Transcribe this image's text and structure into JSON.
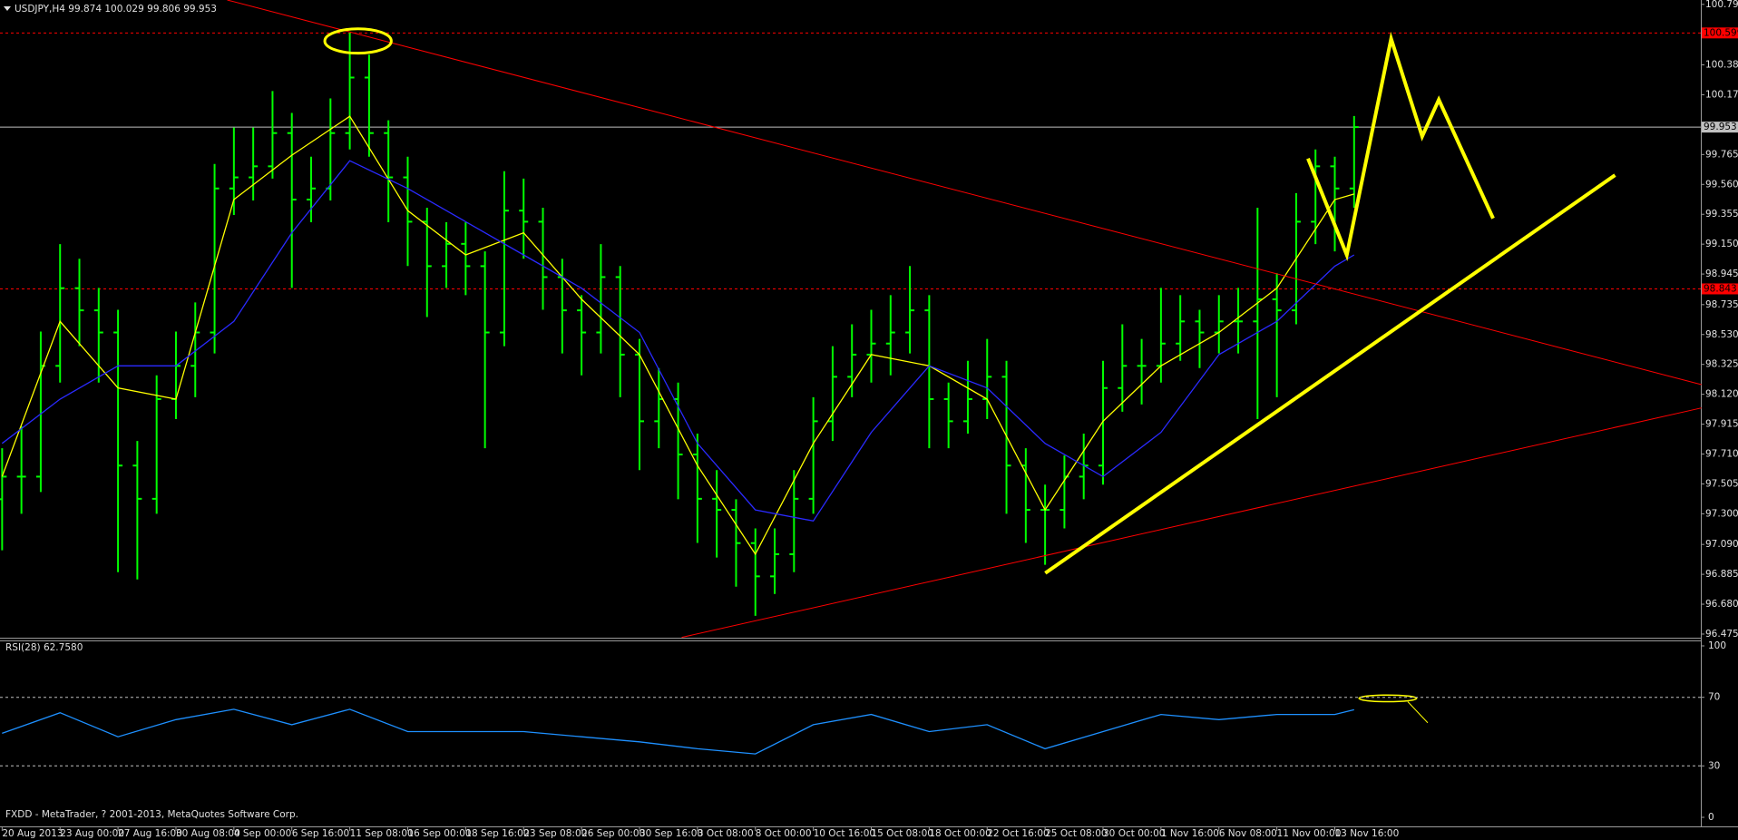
{
  "header": "USDJPY,H4  99.874 100.029 99.806 99.953",
  "footer": "FXDD - MetaTrader, ? 2001-2013, MetaQuotes Software Corp.",
  "chart_data": [
    {
      "type": "ohlc",
      "color": "#00ff00",
      "open": [
        97.4,
        97.555,
        97.555,
        98.315,
        98.848,
        98.696,
        98.544,
        97.631,
        97.403,
        98.087,
        98.315,
        98.544,
        99.532,
        99.608,
        99.684,
        99.912,
        99.456,
        99.532,
        99.912,
        100.293,
        99.912,
        99.608,
        99.304,
        98.999,
        99.152,
        98.999,
        98.544,
        99.38,
        99.304,
        98.924,
        98.696,
        98.544,
        98.924,
        98.392,
        97.935,
        98.087,
        97.707,
        97.403,
        97.327,
        97.099,
        96.871,
        97.023,
        97.403,
        97.935,
        98.24,
        98.392,
        98.468,
        98.544,
        98.696,
        98.087,
        97.935,
        98.087,
        98.24,
        97.631,
        97.327,
        97.327,
        97.555,
        97.631,
        98.163,
        98.315,
        98.315,
        98.468,
        98.62,
        98.544,
        98.62,
        98.62,
        98.772,
        98.696,
        99.304,
        99.684,
        99.532
      ],
      "high": [
        97.75,
        97.9,
        98.55,
        99.15,
        99.05,
        98.85,
        98.7,
        97.8,
        98.25,
        98.55,
        98.75,
        99.7,
        99.95,
        99.95,
        100.2,
        100.05,
        99.75,
        100.15,
        100.6,
        100.45,
        100.0,
        99.75,
        99.4,
        99.3,
        99.3,
        99.1,
        99.65,
        99.6,
        99.4,
        99.05,
        98.8,
        99.15,
        99.0,
        98.5,
        98.3,
        98.2,
        97.85,
        97.6,
        97.4,
        97.2,
        97.2,
        97.6,
        98.1,
        98.45,
        98.6,
        98.7,
        98.8,
        99.0,
        98.8,
        98.2,
        98.35,
        98.5,
        98.35,
        97.75,
        97.5,
        97.7,
        97.85,
        98.35,
        98.6,
        98.5,
        98.85,
        98.8,
        98.7,
        98.8,
        98.85,
        99.4,
        98.95,
        99.5,
        99.8,
        99.75,
        100.029
      ],
      "low": [
        97.05,
        97.3,
        97.45,
        98.2,
        98.45,
        98.2,
        96.9,
        96.85,
        97.3,
        97.95,
        98.1,
        98.4,
        99.35,
        99.45,
        99.6,
        98.85,
        99.3,
        99.45,
        99.8,
        99.75,
        99.3,
        99.0,
        98.65,
        98.85,
        98.8,
        97.75,
        98.45,
        99.05,
        98.7,
        98.4,
        98.25,
        98.4,
        98.1,
        97.6,
        97.75,
        97.4,
        97.1,
        97.0,
        96.8,
        96.6,
        96.75,
        96.9,
        97.3,
        97.8,
        98.1,
        98.2,
        98.25,
        98.4,
        97.75,
        97.75,
        97.85,
        97.95,
        97.3,
        97.1,
        96.95,
        97.2,
        97.4,
        97.5,
        98.0,
        98.05,
        98.2,
        98.35,
        98.3,
        98.4,
        98.4,
        97.95,
        98.1,
        98.6,
        99.15,
        99.1,
        99.4
      ],
      "close": [
        97.555,
        97.555,
        98.315,
        98.848,
        98.696,
        98.544,
        97.631,
        97.403,
        98.087,
        98.315,
        98.544,
        99.532,
        99.608,
        99.684,
        99.912,
        99.456,
        99.532,
        99.912,
        100.293,
        99.912,
        99.608,
        99.304,
        98.999,
        99.152,
        98.999,
        98.544,
        99.38,
        99.304,
        98.924,
        98.696,
        98.544,
        98.924,
        98.392,
        97.935,
        98.087,
        97.707,
        97.403,
        97.327,
        97.099,
        96.871,
        97.023,
        97.403,
        97.935,
        98.24,
        98.392,
        98.468,
        98.544,
        98.696,
        98.087,
        97.935,
        98.087,
        98.24,
        97.631,
        97.327,
        97.327,
        97.555,
        97.631,
        98.163,
        98.315,
        98.315,
        98.468,
        98.62,
        98.544,
        98.62,
        98.62,
        98.772,
        98.696,
        99.304,
        99.684,
        99.532,
        99.953
      ],
      "overlays": [
        {
          "color": "#ffff00",
          "x": [
            0,
            3,
            6,
            9,
            12,
            15,
            18,
            21,
            24,
            27,
            30,
            33,
            36,
            39,
            42,
            45,
            48,
            51,
            54,
            57,
            60,
            63,
            66,
            69,
            70
          ],
          "values": [
            97.555,
            98.62,
            98.163,
            98.087,
            99.456,
            99.76,
            100.027,
            99.38,
            99.076,
            99.228,
            98.772,
            98.392,
            97.631,
            97.023,
            97.783,
            98.392,
            98.315,
            98.087,
            97.327,
            97.935,
            98.315,
            98.544,
            98.848,
            99.456,
            99.494
          ]
        },
        {
          "color": "#2a2aff",
          "x": [
            0,
            3,
            6,
            9,
            12,
            15,
            18,
            21,
            24,
            27,
            30,
            33,
            36,
            39,
            42,
            45,
            48,
            51,
            54,
            57,
            60,
            63,
            66,
            69,
            70
          ],
          "values": [
            97.783,
            98.087,
            98.315,
            98.315,
            98.62,
            99.228,
            99.722,
            99.532,
            99.304,
            99.076,
            98.848,
            98.544,
            97.783,
            97.327,
            97.251,
            97.859,
            98.315,
            98.163,
            97.783,
            97.555,
            97.859,
            98.392,
            98.62,
            98.999,
            99.076
          ]
        }
      ],
      "hlines": [
        {
          "value": 100.599,
          "color": "#ff0000",
          "style": "dashed"
        },
        {
          "value": 99.953,
          "color": "#c0c0c0",
          "style": "solid"
        },
        {
          "value": 98.843,
          "color": "#ff0000",
          "style": "dashed"
        }
      ],
      "xlim": [
        -0.11,
        87.95
      ],
      "xticks": [
        {
          "value": 0,
          "label": "20 Aug 2013"
        },
        {
          "value": 3,
          "label": "23 Aug 00:00"
        },
        {
          "value": 6,
          "label": "27 Aug 16:00"
        },
        {
          "value": 9,
          "label": "30 Aug 08:00"
        },
        {
          "value": 12,
          "label": "4 Sep 00:00"
        },
        {
          "value": 15,
          "label": "6 Sep 16:00"
        },
        {
          "value": 18,
          "label": "11 Sep 08:00"
        },
        {
          "value": 21,
          "label": "16 Sep 00:00"
        },
        {
          "value": 24,
          "label": "18 Sep 16:00"
        },
        {
          "value": 27,
          "label": "23 Sep 08:00"
        },
        {
          "value": 30,
          "label": "26 Sep 00:00"
        },
        {
          "value": 33,
          "label": "30 Sep 16:00"
        },
        {
          "value": 36,
          "label": "3 Oct 08:00"
        },
        {
          "value": 39,
          "label": "8 Oct 00:00"
        },
        {
          "value": 42,
          "label": "10 Oct 16:00"
        },
        {
          "value": 45,
          "label": "15 Oct 08:00"
        },
        {
          "value": 48,
          "label": "18 Oct 00:00"
        },
        {
          "value": 51,
          "label": "22 Oct 16:00"
        },
        {
          "value": 54,
          "label": "25 Oct 08:00"
        },
        {
          "value": 57,
          "label": "30 Oct 00:00"
        },
        {
          "value": 60,
          "label": "1 Nov 16:00"
        },
        {
          "value": 63,
          "label": "6 Nov 08:00"
        },
        {
          "value": 66,
          "label": "11 Nov 00:00"
        },
        {
          "value": 69,
          "label": "13 Nov 16:00"
        }
      ],
      "ylim": [
        96.45,
        100.825
      ],
      "yticks": [
        100.795,
        {
          "value": 100.38,
          "label": "100.380"
        },
        100.175,
        99.765,
        {
          "value": 99.56,
          "label": "99.560"
        },
        99.355,
        {
          "value": 99.15,
          "label": "99.150"
        },
        98.945,
        98.735,
        {
          "value": 98.53,
          "label": "98.530"
        },
        98.325,
        {
          "value": 98.12,
          "label": "98.120"
        },
        97.915,
        {
          "value": 97.71,
          "label": "97.710"
        },
        97.505,
        {
          "value": 97.3,
          "label": "97.300"
        },
        {
          "value": 97.09,
          "label": "97.090"
        },
        96.885,
        {
          "value": 96.68,
          "label": "96.680"
        },
        96.475
      ]
    },
    {
      "type": "line",
      "title": "RSI(28) 62.7580",
      "color": "#1e90ff",
      "xlim": [
        -0.11,
        87.95
      ],
      "x": [
        0,
        3,
        6,
        9,
        12,
        15,
        18,
        21,
        24,
        27,
        30,
        33,
        36,
        39,
        42,
        45,
        48,
        51,
        54,
        57,
        60,
        63,
        66,
        69,
        70
      ],
      "values": [
        49,
        61,
        47,
        57,
        63,
        54,
        63,
        50,
        50,
        50,
        47,
        44,
        40,
        37,
        54,
        60,
        50,
        54,
        40,
        50,
        60,
        57,
        60,
        60,
        62.758
      ],
      "ylim": [
        0,
        100
      ],
      "yticks": [
        100,
        70,
        30,
        0
      ]
    }
  ]
}
